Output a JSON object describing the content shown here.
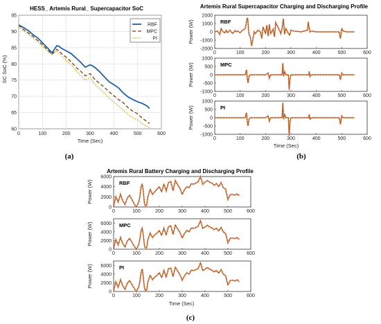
{
  "captions": {
    "a": "(a)",
    "b": "(b)",
    "c": "(c)"
  },
  "colors": {
    "rbf": "#1f5fa8",
    "mpc": "#7a3e10",
    "pi": "#c8a214",
    "profile": "#b3591a",
    "profile_shadow": "#f2b7a8"
  },
  "chart_data": [
    {
      "id": "soc",
      "type": "line",
      "title": "HESS_ Artemis Rural_ Supercapacitor SoC",
      "xlabel": "Time (Sec)",
      "ylabel": "SC SoC (%)",
      "xlim": [
        0,
        600
      ],
      "ylim": [
        60,
        95
      ],
      "xticks": [
        "0",
        "100",
        "200",
        "300",
        "400",
        "500",
        "600"
      ],
      "yticks": [
        "60",
        "65",
        "70",
        "75",
        "80",
        "85",
        "90",
        "95"
      ],
      "grid": true,
      "legend": "top-right",
      "series": [
        {
          "name": "RBF",
          "style": "solid",
          "x": [
            0,
            20,
            40,
            60,
            80,
            100,
            120,
            140,
            160,
            170,
            180,
            200,
            220,
            240,
            260,
            280,
            300,
            310,
            320,
            340,
            360,
            380,
            400,
            420,
            440,
            460,
            480,
            500,
            520,
            540,
            550
          ],
          "values": [
            92,
            91.2,
            90.3,
            89,
            88,
            86.5,
            85,
            83.4,
            85.6,
            85.4,
            84.8,
            84,
            83.2,
            81.9,
            80.5,
            79,
            79.7,
            79.4,
            78.9,
            77.6,
            76,
            74.5,
            73.6,
            72.6,
            71,
            69.8,
            69,
            68.3,
            67.8,
            67,
            66.2
          ]
        },
        {
          "name": "MPC",
          "style": "dashed",
          "x": [
            0,
            20,
            40,
            60,
            80,
            100,
            120,
            140,
            160,
            170,
            180,
            200,
            220,
            240,
            260,
            280,
            300,
            310,
            320,
            340,
            360,
            380,
            400,
            420,
            440,
            460,
            480,
            500,
            520,
            540,
            550
          ],
          "values": [
            92,
            90.6,
            89.6,
            88.5,
            87.2,
            85.9,
            84.4,
            83,
            84.5,
            84,
            83.2,
            82,
            80.7,
            79,
            77.8,
            76.3,
            77,
            76.1,
            75.2,
            74,
            72.8,
            71.4,
            70.2,
            69,
            68,
            66.5,
            65.4,
            64.6,
            63.2,
            62.2,
            61.6
          ]
        },
        {
          "name": "PI",
          "style": "dotted",
          "x": [
            0,
            20,
            40,
            60,
            80,
            100,
            120,
            140,
            160,
            170,
            180,
            200,
            220,
            240,
            260,
            280,
            300,
            310,
            320,
            340,
            360,
            380,
            400,
            420,
            440,
            460,
            480,
            500,
            520,
            540,
            550
          ],
          "values": [
            91.5,
            90.2,
            89.2,
            88,
            86.8,
            85.3,
            84,
            82.8,
            84,
            83.4,
            82.5,
            81,
            79.8,
            78,
            76.5,
            75,
            75.8,
            74.7,
            73.7,
            72.4,
            71,
            69.5,
            68.2,
            67,
            65.8,
            64.4,
            63.4,
            62.7,
            61.5,
            60.8,
            60.3
          ]
        }
      ]
    },
    {
      "id": "sc_profile",
      "type": "line",
      "title": "Artemis Rural Supercapacitor Charging and Discharging Profile",
      "xlabel": "Time (Sec)",
      "xlim": [
        0,
        600
      ],
      "xticks": [
        "0",
        "100",
        "200",
        "300",
        "400",
        "500",
        "600"
      ],
      "panels": [
        {
          "name": "RBF",
          "ylabel": "Power (W)",
          "ylim": [
            -2000,
            2000
          ],
          "yticks": [
            "2000",
            "1000",
            "0",
            "-1000",
            "-2000"
          ],
          "x": [
            0,
            10,
            20,
            25,
            30,
            40,
            45,
            50,
            60,
            70,
            80,
            85,
            90,
            100,
            110,
            115,
            120,
            125,
            128,
            130,
            133,
            135,
            140,
            145,
            150,
            155,
            160,
            170,
            180,
            185,
            190,
            200,
            205,
            210,
            215,
            220,
            230,
            235,
            240,
            250,
            260,
            265,
            270,
            275,
            280,
            285,
            290,
            295,
            300,
            310,
            340,
            365,
            368,
            371,
            375,
            380,
            400,
            450,
            490,
            492,
            495,
            500,
            505,
            520,
            550
          ],
          "values": [
            0,
            100,
            -300,
            400,
            100,
            -150,
            200,
            -100,
            200,
            -200,
            150,
            0,
            100,
            -100,
            200,
            300,
            400,
            1200,
            1700,
            1500,
            200,
            -300,
            -600,
            -1700,
            -900,
            0,
            -200,
            200,
            0,
            -800,
            600,
            -200,
            800,
            -500,
            900,
            -200,
            300,
            -600,
            1100,
            500,
            -200,
            400,
            1600,
            -300,
            400,
            100,
            -200,
            -400,
            200,
            100,
            0,
            200,
            1200,
            600,
            0,
            100,
            0,
            0,
            0,
            -400,
            -800,
            400,
            100,
            0,
            0
          ]
        },
        {
          "name": "MPC",
          "ylabel": "Power (W)",
          "ylim": [
            -1000,
            1000
          ],
          "yticks": [
            "1000",
            "500",
            "0",
            "-500",
            "-1000"
          ],
          "x": [
            0,
            50,
            100,
            120,
            125,
            128,
            131,
            135,
            140,
            145,
            150,
            200,
            210,
            215,
            220,
            250,
            265,
            268,
            271,
            275,
            280,
            290,
            293,
            296,
            300,
            310,
            370,
            372,
            375,
            380,
            490,
            495,
            500,
            505,
            550
          ],
          "values": [
            0,
            0,
            0,
            0,
            300,
            -200,
            -500,
            -100,
            0,
            0,
            0,
            0,
            100,
            -200,
            0,
            0,
            0,
            700,
            -100,
            200,
            0,
            0,
            -900,
            -300,
            0,
            0,
            0,
            200,
            -100,
            0,
            0,
            -300,
            100,
            0,
            0
          ]
        },
        {
          "name": "PI",
          "ylabel": "Power (W)",
          "ylim": [
            -1000,
            1000
          ],
          "yticks": [
            "1000",
            "500",
            "0",
            "-500",
            "-1000"
          ],
          "x": [
            0,
            50,
            100,
            120,
            125,
            128,
            131,
            135,
            140,
            145,
            150,
            200,
            210,
            215,
            220,
            250,
            265,
            268,
            271,
            275,
            280,
            290,
            293,
            296,
            300,
            310,
            370,
            372,
            375,
            380,
            490,
            495,
            500,
            505,
            550
          ],
          "values": [
            0,
            0,
            0,
            0,
            300,
            -200,
            -500,
            -100,
            0,
            0,
            0,
            0,
            100,
            -200,
            0,
            0,
            0,
            900,
            -100,
            200,
            0,
            0,
            -1100,
            -300,
            0,
            0,
            0,
            200,
            -100,
            0,
            0,
            -400,
            100,
            0,
            0
          ]
        }
      ]
    },
    {
      "id": "battery_profile",
      "type": "line",
      "title": "Artemis Rural Battery Charging and Discharging Profile",
      "xlabel": "Time (Sec)",
      "xlim": [
        0,
        600
      ],
      "xticks": [
        "0",
        "100",
        "200",
        "300",
        "400",
        "500",
        "600"
      ],
      "panels": [
        {
          "name": "RBF",
          "ylabel": "Power (W)",
          "ylim": [
            0,
            6000
          ],
          "yticks": [
            "6000",
            "4000",
            "2000",
            "0"
          ],
          "x": [
            0,
            10,
            20,
            30,
            40,
            50,
            60,
            70,
            80,
            90,
            100,
            110,
            115,
            120,
            125,
            130,
            135,
            140,
            145,
            150,
            160,
            170,
            180,
            190,
            200,
            210,
            220,
            230,
            240,
            250,
            260,
            270,
            280,
            290,
            300,
            310,
            320,
            330,
            340,
            350,
            360,
            370,
            380,
            390,
            400,
            410,
            420,
            430,
            440,
            450,
            460,
            470,
            480,
            490,
            500,
            510,
            520,
            530,
            540,
            550
          ],
          "values": [
            200,
            2000,
            1000,
            2500,
            1200,
            500,
            1800,
            2300,
            1500,
            600,
            0,
            1000,
            2000,
            4000,
            4500,
            3000,
            600,
            200,
            400,
            2000,
            3500,
            2500,
            3000,
            3500,
            4000,
            3000,
            4500,
            3200,
            4800,
            5000,
            3200,
            5200,
            4400,
            3700,
            2500,
            3400,
            4000,
            3800,
            4600,
            4500,
            4700,
            5000,
            6000,
            4500,
            4900,
            5200,
            4900,
            4700,
            4300,
            4600,
            4000,
            4800,
            3800,
            3500,
            1500,
            2400,
            2500,
            2300,
            2600,
            2200
          ]
        },
        {
          "name": "MPC",
          "ylabel": "Power (W)",
          "ylim": [
            0,
            7000
          ],
          "yticks": [
            "6000",
            "4000",
            "2000",
            "0"
          ],
          "x": [
            0,
            10,
            20,
            30,
            40,
            50,
            60,
            70,
            80,
            90,
            100,
            110,
            115,
            120,
            125,
            130,
            135,
            140,
            145,
            150,
            160,
            170,
            180,
            190,
            200,
            210,
            220,
            230,
            240,
            250,
            260,
            270,
            280,
            290,
            300,
            310,
            320,
            330,
            340,
            350,
            360,
            370,
            380,
            390,
            400,
            410,
            420,
            430,
            440,
            450,
            460,
            470,
            480,
            490,
            500,
            510,
            520,
            530,
            540,
            550
          ],
          "values": [
            200,
            2200,
            1000,
            2700,
            1300,
            500,
            1900,
            2500,
            1600,
            700,
            0,
            1100,
            2300,
            4300,
            4800,
            3200,
            700,
            200,
            400,
            2200,
            3700,
            2700,
            3300,
            3700,
            4300,
            3200,
            4800,
            3300,
            5200,
            5400,
            3400,
            5600,
            4700,
            3900,
            2600,
            3600,
            4300,
            4000,
            4900,
            4800,
            5000,
            5300,
            6600,
            4800,
            5100,
            5500,
            5100,
            4900,
            4500,
            4800,
            4200,
            5000,
            4000,
            3600,
            1500,
            2500,
            2600,
            2400,
            2700,
            2200
          ]
        },
        {
          "name": "PI",
          "ylabel": "Power (W)",
          "ylim": [
            0,
            7000
          ],
          "yticks": [
            "6000",
            "4000",
            "2000",
            "0"
          ],
          "x": [
            0,
            10,
            20,
            30,
            40,
            50,
            60,
            70,
            80,
            90,
            100,
            110,
            115,
            120,
            125,
            130,
            135,
            140,
            145,
            150,
            160,
            170,
            180,
            190,
            200,
            210,
            220,
            230,
            240,
            250,
            260,
            270,
            280,
            290,
            300,
            310,
            320,
            330,
            340,
            350,
            360,
            370,
            380,
            390,
            400,
            410,
            420,
            430,
            440,
            450,
            460,
            470,
            480,
            490,
            500,
            510,
            520,
            530,
            540,
            550
          ],
          "values": [
            200,
            2200,
            1000,
            2700,
            1300,
            500,
            1900,
            2500,
            1600,
            700,
            0,
            1100,
            2300,
            4300,
            5200,
            3200,
            700,
            200,
            400,
            2200,
            3700,
            2700,
            3300,
            3700,
            4300,
            3200,
            4800,
            3300,
            5200,
            5400,
            3400,
            5600,
            4700,
            3900,
            2600,
            3600,
            4300,
            4000,
            4900,
            4800,
            5000,
            5300,
            6600,
            4800,
            5100,
            5500,
            5100,
            4900,
            4500,
            4800,
            4200,
            5000,
            4000,
            3600,
            1500,
            2500,
            2600,
            2400,
            2700,
            2200
          ]
        }
      ]
    }
  ]
}
